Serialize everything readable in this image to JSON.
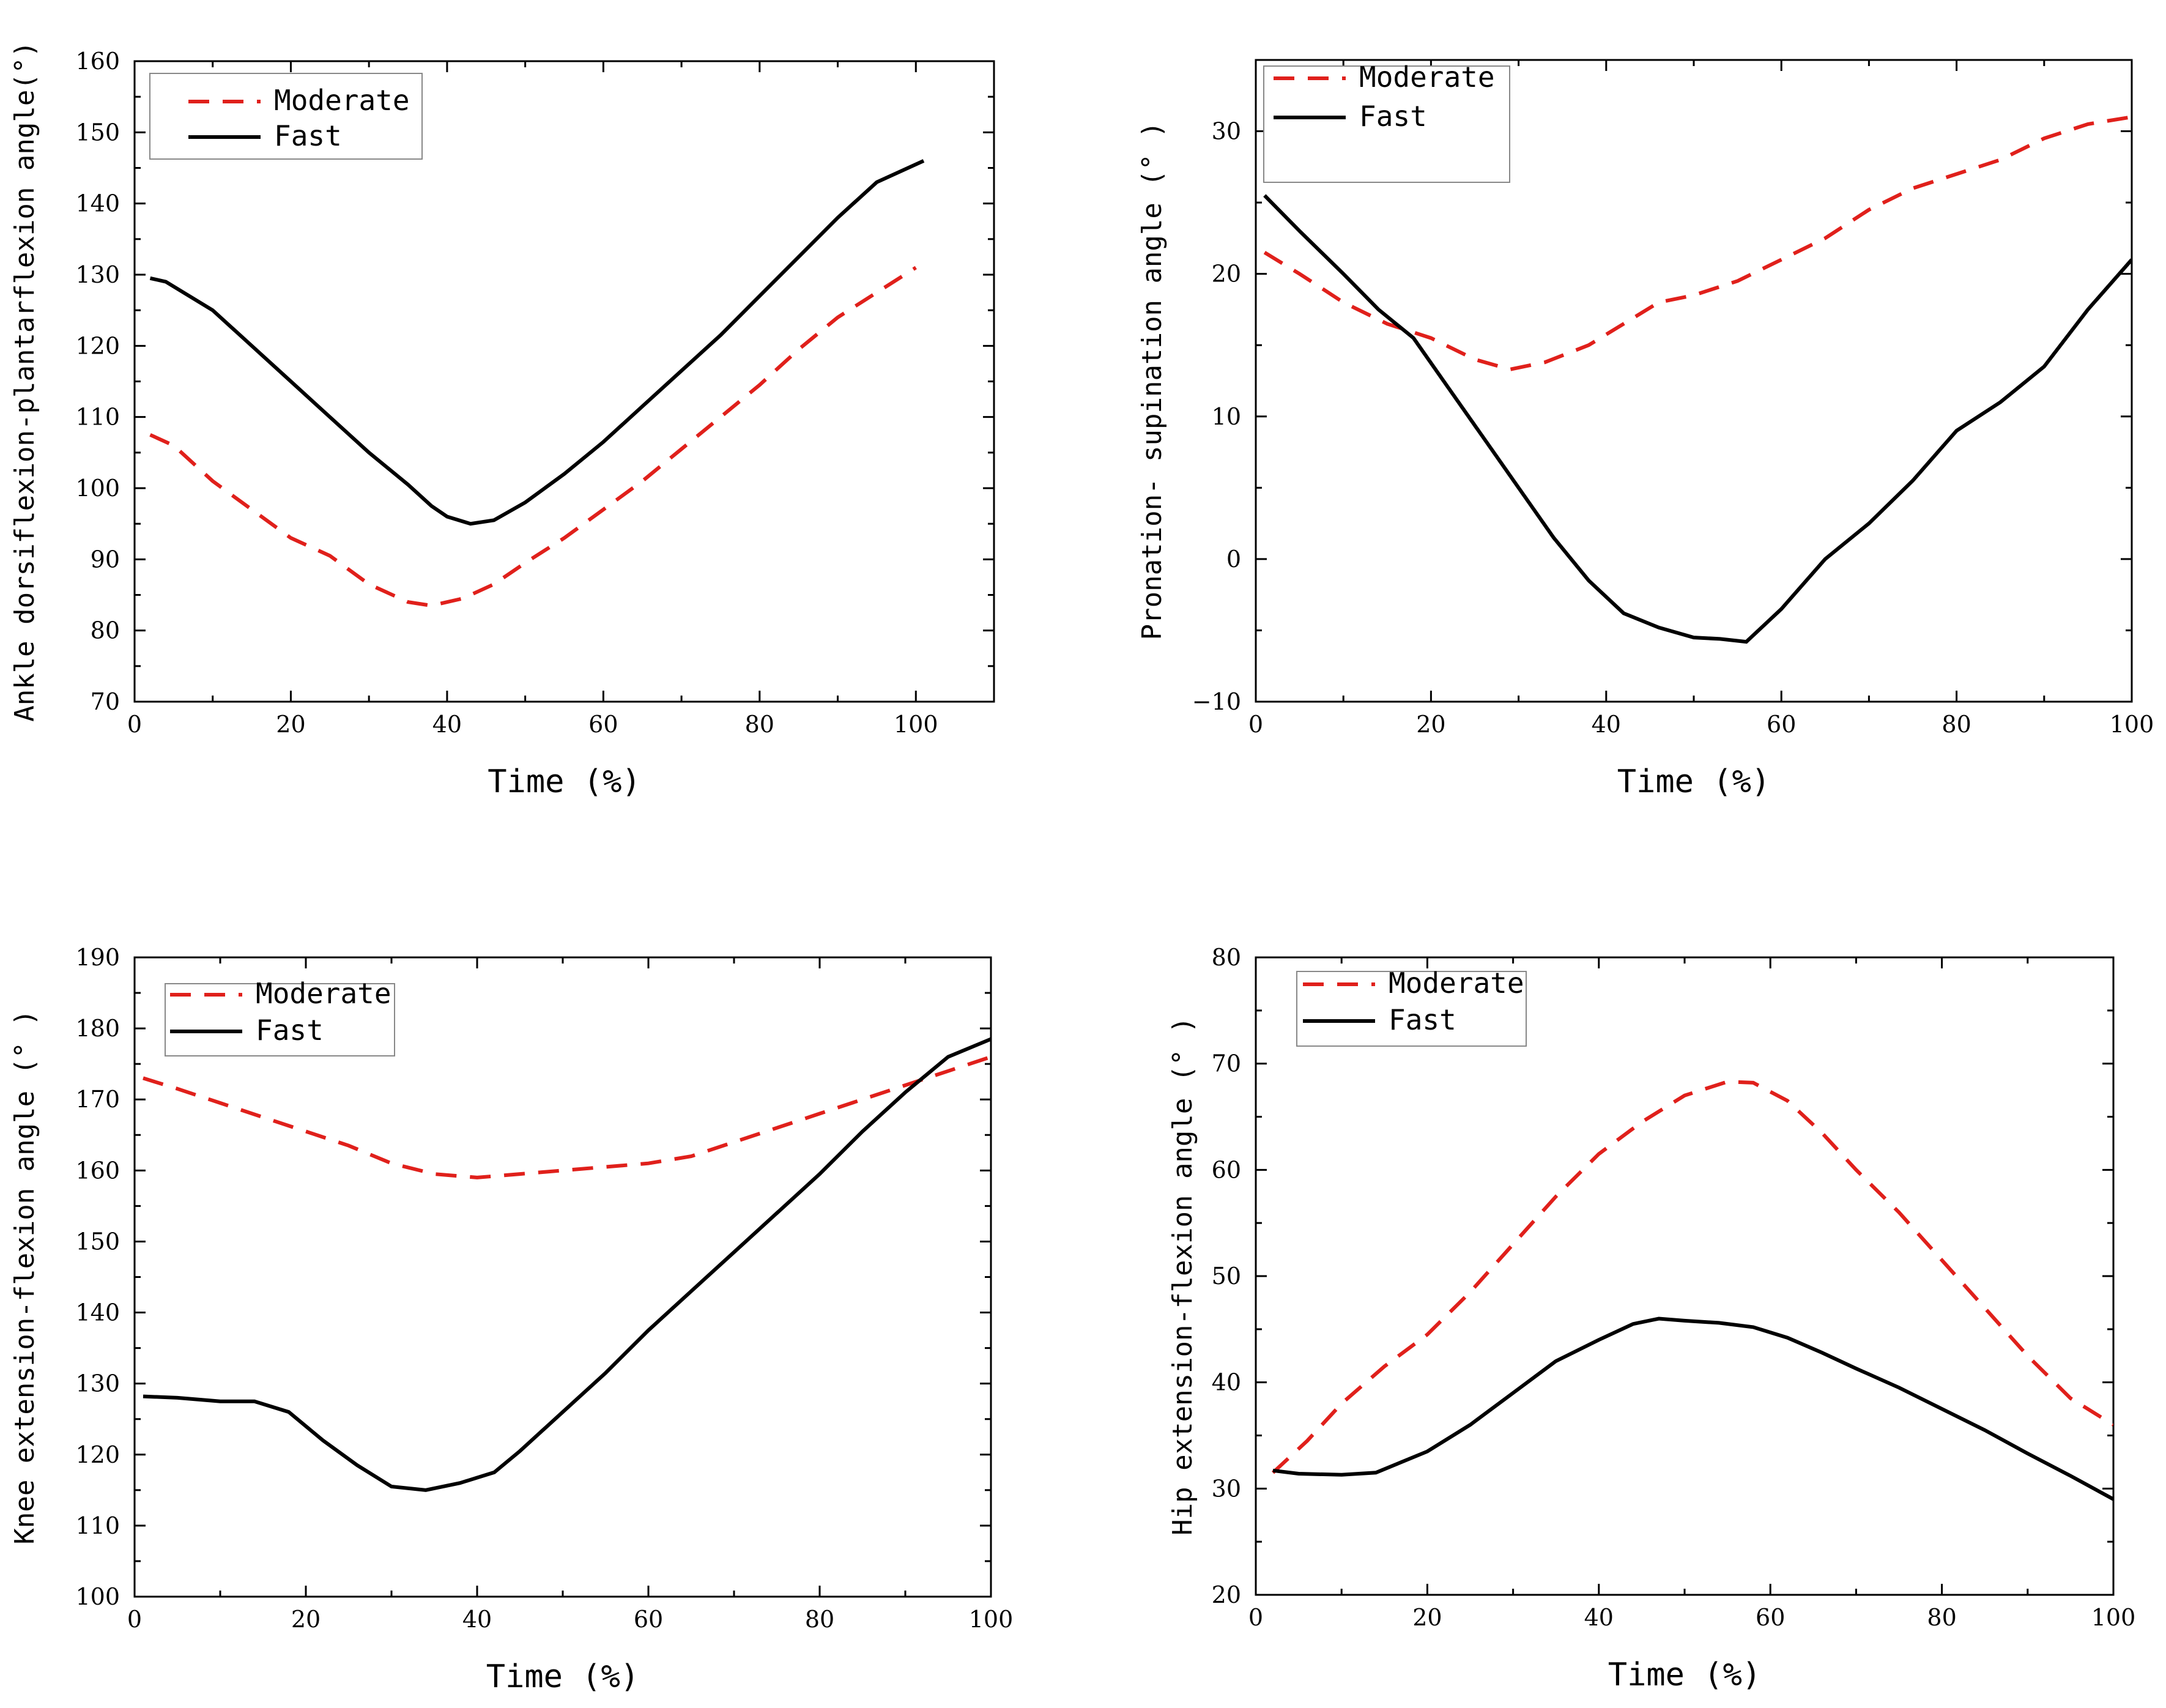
{
  "colors": {
    "moderate": "#e0201b",
    "fast": "#000000"
  },
  "chart_data": [
    {
      "id": "ankle",
      "type": "line",
      "title": "",
      "xlabel": "Time (%)",
      "ylabel": "Ankle dorsiflexion-plantarflexion angle(°)",
      "xlim": [
        0,
        110
      ],
      "ylim": [
        70,
        160
      ],
      "xticks": [
        0,
        20,
        40,
        60,
        80,
        100
      ],
      "yticks": [
        70,
        80,
        90,
        100,
        110,
        120,
        130,
        140,
        150,
        160
      ],
      "legend_position": "top-left",
      "series": [
        {
          "name": "Moderate",
          "style": "dashed",
          "color": "#e0201b",
          "x": [
            2,
            5,
            10,
            15,
            20,
            25,
            30,
            35,
            38,
            42,
            46,
            50,
            55,
            60,
            65,
            70,
            75,
            80,
            85,
            90,
            95,
            100
          ],
          "y": [
            107.5,
            106,
            101,
            97,
            93,
            90.5,
            86.5,
            84,
            83.5,
            84.5,
            86.5,
            89.5,
            93,
            97,
            101,
            105.5,
            110,
            114.5,
            119.5,
            124,
            127.5,
            131
          ]
        },
        {
          "name": "Fast",
          "style": "solid",
          "color": "#000000",
          "x": [
            2,
            4,
            10,
            15,
            20,
            25,
            30,
            35,
            38,
            40,
            43,
            46,
            50,
            55,
            60,
            65,
            70,
            75,
            80,
            85,
            90,
            95,
            101
          ],
          "y": [
            129.5,
            129,
            125,
            120,
            115,
            110,
            105,
            100.5,
            97.5,
            96,
            95,
            95.5,
            98,
            102,
            106.5,
            111.5,
            116.5,
            121.5,
            127,
            132.5,
            138,
            143,
            146
          ]
        }
      ]
    },
    {
      "id": "pronation",
      "type": "line",
      "title": "",
      "xlabel": "Time (%)",
      "ylabel": "Pronation- supination angle (° )",
      "xlim": [
        0,
        100
      ],
      "ylim": [
        -10,
        35
      ],
      "xticks": [
        0,
        20,
        40,
        60,
        80,
        100
      ],
      "yticks": [
        -10,
        0,
        10,
        20,
        30
      ],
      "legend_position": "top-left",
      "series": [
        {
          "name": "Moderate",
          "style": "dashed",
          "color": "#e0201b",
          "x": [
            1,
            5,
            10,
            15,
            20,
            25,
            29,
            33,
            38,
            42,
            46,
            50,
            55,
            60,
            65,
            70,
            75,
            80,
            85,
            90,
            95,
            100
          ],
          "y": [
            21.5,
            20,
            18,
            16.5,
            15.5,
            14,
            13.3,
            13.8,
            15,
            16.5,
            18,
            18.5,
            19.5,
            21,
            22.5,
            24.5,
            26,
            27,
            28,
            29.5,
            30.5,
            31
          ]
        },
        {
          "name": "Fast",
          "style": "solid",
          "color": "#000000",
          "x": [
            1,
            5,
            10,
            14,
            18,
            22,
            26,
            30,
            34,
            38,
            42,
            46,
            50,
            53,
            56,
            60,
            65,
            70,
            75,
            80,
            85,
            90,
            95,
            100
          ],
          "y": [
            25.5,
            23,
            20,
            17.5,
            15.5,
            12,
            8.5,
            5,
            1.5,
            -1.5,
            -3.8,
            -4.8,
            -5.5,
            -5.6,
            -5.8,
            -3.5,
            0,
            2.5,
            5.5,
            9,
            11,
            13.5,
            17.5,
            21
          ]
        }
      ]
    },
    {
      "id": "knee",
      "type": "line",
      "title": "",
      "xlabel": "Time (%)",
      "ylabel": "Knee extension-flexion angle (° )",
      "xlim": [
        0,
        100
      ],
      "ylim": [
        100,
        190
      ],
      "xticks": [
        0,
        20,
        40,
        60,
        80,
        100
      ],
      "yticks": [
        100,
        110,
        120,
        130,
        140,
        150,
        160,
        170,
        180,
        190
      ],
      "legend_position": "top-left",
      "series": [
        {
          "name": "Moderate",
          "style": "dashed",
          "color": "#e0201b",
          "x": [
            1,
            5,
            10,
            15,
            20,
            25,
            30,
            35,
            40,
            45,
            50,
            55,
            60,
            65,
            70,
            75,
            80,
            85,
            90,
            95,
            100
          ],
          "y": [
            173,
            171.5,
            169.5,
            167.5,
            165.5,
            163.5,
            161,
            159.5,
            159,
            159.5,
            160,
            160.5,
            161,
            162,
            164,
            166,
            168,
            170,
            172,
            174,
            176
          ]
        },
        {
          "name": "Fast",
          "style": "solid",
          "color": "#000000",
          "x": [
            1,
            5,
            10,
            14,
            18,
            22,
            26,
            30,
            34,
            38,
            42,
            45,
            50,
            55,
            60,
            65,
            70,
            75,
            80,
            85,
            90,
            95,
            100
          ],
          "y": [
            128.2,
            128,
            127.5,
            127.5,
            126,
            122,
            118.5,
            115.5,
            115,
            116,
            117.5,
            120.5,
            126,
            131.5,
            137.5,
            143,
            148.5,
            154,
            159.5,
            165.5,
            171,
            176,
            178.5
          ]
        }
      ]
    },
    {
      "id": "hip",
      "type": "line",
      "title": "",
      "xlabel": "Time (%)",
      "ylabel": "Hip extension-flexion angle (° )",
      "xlim": [
        0,
        100
      ],
      "ylim": [
        20,
        80
      ],
      "xticks": [
        0,
        20,
        40,
        60,
        80,
        100
      ],
      "yticks": [
        20,
        30,
        40,
        50,
        60,
        70,
        80
      ],
      "legend_position": "top-left",
      "series": [
        {
          "name": "Moderate",
          "style": "dashed",
          "color": "#e0201b",
          "x": [
            2,
            6,
            10,
            15,
            20,
            25,
            30,
            35,
            40,
            45,
            50,
            55,
            58,
            62,
            66,
            70,
            75,
            80,
            85,
            90,
            95,
            100
          ],
          "y": [
            31.5,
            34.5,
            38,
            41.5,
            44.5,
            48.5,
            53,
            57.5,
            61.5,
            64.5,
            67,
            68.3,
            68.2,
            66.5,
            63.5,
            60,
            56,
            51.5,
            47,
            42.5,
            38.5,
            36
          ]
        },
        {
          "name": "Fast",
          "style": "solid",
          "color": "#000000",
          "x": [
            2,
            5,
            10,
            14,
            20,
            25,
            30,
            35,
            40,
            44,
            47,
            50,
            54,
            58,
            62,
            66,
            70,
            75,
            80,
            85,
            90,
            95,
            100
          ],
          "y": [
            31.7,
            31.4,
            31.3,
            31.5,
            33.5,
            36,
            39,
            42,
            44,
            45.5,
            46,
            45.8,
            45.6,
            45.2,
            44.2,
            42.8,
            41.3,
            39.5,
            37.5,
            35.5,
            33.3,
            31.2,
            29
          ]
        }
      ]
    }
  ]
}
